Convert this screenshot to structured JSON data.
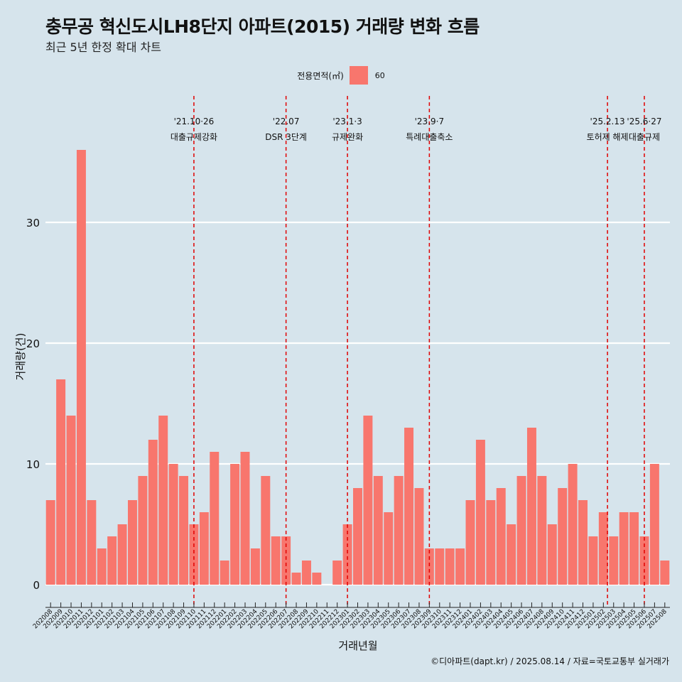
{
  "title": "충무공 혁신도시LH8단지 아파트(2015) 거래량 변화 흐름",
  "subtitle": "최근 5년 한정 확대 차트",
  "caption": "©디아파트(dapt.kr) / 2025.08.14 / 자료=국토교통부 실거래가",
  "legend": {
    "title": "전용면적(㎡)",
    "label": "60"
  },
  "colors": {
    "bar": "#f8766d",
    "background": "#d6e4ec",
    "grid": "#ffffff",
    "event_line": "#e00000"
  },
  "chart_data": {
    "type": "bar",
    "xlabel": "거래년월",
    "ylabel": "거래량(건)",
    "ylim": [
      0,
      38
    ],
    "yticks": [
      0,
      10,
      20,
      30
    ],
    "grid": true,
    "legend_position": "top",
    "categories": [
      "202008",
      "202009",
      "202010",
      "202011",
      "202012",
      "202101",
      "202102",
      "202103",
      "202104",
      "202105",
      "202106",
      "202107",
      "202108",
      "202109",
      "202110",
      "202111",
      "202112",
      "202201",
      "202202",
      "202203",
      "202204",
      "202205",
      "202206",
      "202207",
      "202208",
      "202209",
      "202210",
      "202211",
      "202212",
      "202301",
      "202302",
      "202303",
      "202304",
      "202305",
      "202306",
      "202307",
      "202308",
      "202309",
      "202310",
      "202311",
      "202312",
      "202401",
      "202402",
      "202403",
      "202404",
      "202405",
      "202406",
      "202407",
      "202408",
      "202409",
      "202410",
      "202411",
      "202412",
      "202501",
      "202502",
      "202503",
      "202504",
      "202505",
      "202506",
      "202507",
      "202508"
    ],
    "series": [
      {
        "name": "60",
        "values": [
          7,
          17,
          14,
          36,
          7,
          3,
          4,
          5,
          7,
          9,
          12,
          14,
          10,
          9,
          5,
          6,
          11,
          2,
          10,
          11,
          3,
          9,
          4,
          4,
          1,
          2,
          1,
          0,
          2,
          5,
          8,
          14,
          9,
          6,
          9,
          13,
          8,
          3,
          3,
          3,
          3,
          7,
          12,
          7,
          8,
          5,
          9,
          13,
          9,
          5,
          8,
          10,
          7,
          4,
          6,
          4,
          6,
          6,
          4,
          10,
          2
        ]
      }
    ],
    "annotations": [
      {
        "category": "202110",
        "date": "'21.10·26",
        "label": "대출규제강화",
        "offset": 0.0
      },
      {
        "category": "202207",
        "date": "'22.07",
        "label": "DSR 3단계",
        "offset": 0.0
      },
      {
        "category": "202301",
        "date": "'23.1·3",
        "label": "규제완화",
        "offset": 0.0
      },
      {
        "category": "202309",
        "date": "'23.9·7",
        "label": "특례대출축소",
        "offset": 0.0
      },
      {
        "category": "202502",
        "date": "'25.2.13",
        "label": "토허제 해제",
        "offset": 0.4
      },
      {
        "category": "202506",
        "date": "'25.6·27",
        "label": "대출규제",
        "offset": 0.0
      }
    ]
  }
}
